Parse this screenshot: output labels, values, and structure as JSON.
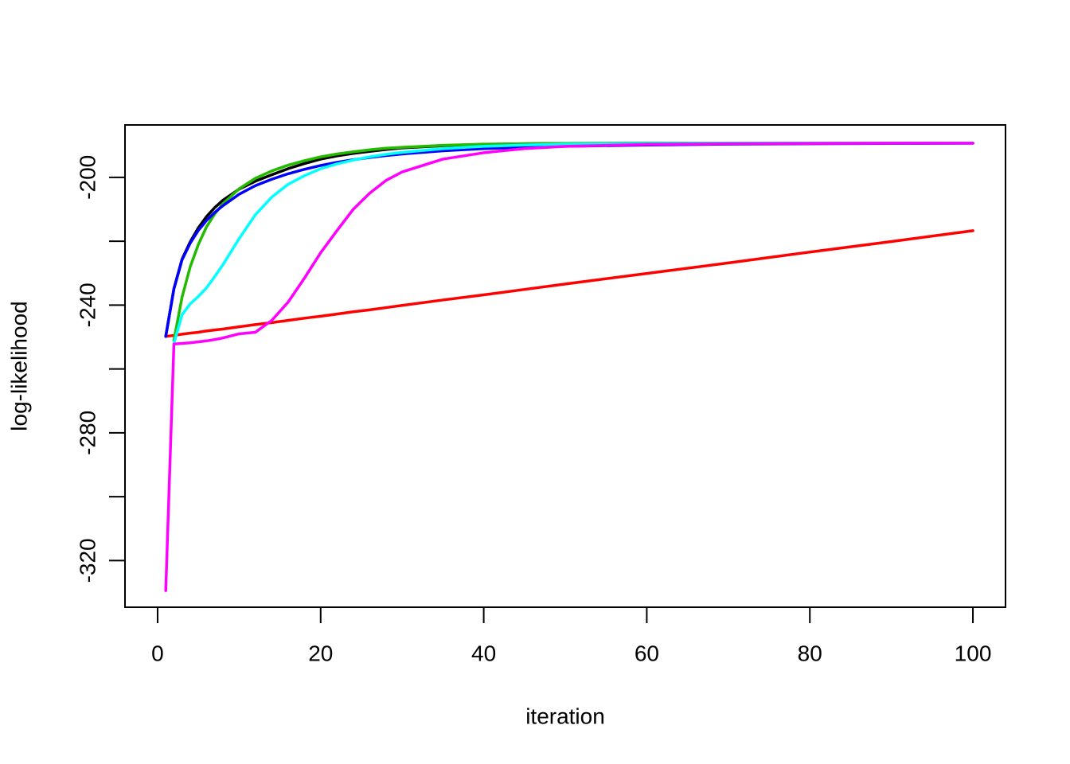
{
  "chart_data": {
    "type": "line",
    "x_label": "iteration",
    "y_label": "log-likelihood",
    "x": [
      1,
      2,
      3,
      4,
      5,
      6,
      7,
      8,
      10,
      12,
      14,
      16,
      18,
      20,
      22,
      24,
      26,
      28,
      30,
      35,
      40,
      45,
      50,
      60,
      70,
      80,
      90,
      100
    ],
    "series": [
      {
        "color": "#ff0000",
        "values": [
          -249.8,
          -249.5,
          -249.1,
          -248.8,
          -248.5,
          -248.1,
          -247.8,
          -247.5,
          -246.8,
          -246.1,
          -245.5,
          -244.8,
          -244.1,
          -243.5,
          -242.8,
          -242.1,
          -241.5,
          -240.8,
          -240.1,
          -238.4,
          -236.8,
          -235.1,
          -233.4,
          -230.1,
          -226.8,
          -223.4,
          -220.1,
          -216.7
        ]
      },
      {
        "color": "#000000",
        "values": [
          -249.8,
          -234.9,
          -225.6,
          -220.2,
          -215.8,
          -212.3,
          -209.5,
          -207.2,
          -203.7,
          -201.2,
          -199.2,
          -197.3,
          -195.7,
          -194.3,
          -193.3,
          -192.5,
          -191.9,
          -191.3,
          -190.8,
          -190.1,
          -189.7,
          -189.5,
          -189.4,
          -189.3,
          -189.3,
          -189.3,
          -189.3,
          -189.3
        ]
      },
      {
        "color": "#22bb00",
        "values": [
          null,
          -251,
          -237.5,
          -228,
          -221,
          -215.5,
          -211.5,
          -208.3,
          -203.6,
          -200.3,
          -198,
          -196.2,
          -194.8,
          -193.6,
          -192.7,
          -192,
          -191.4,
          -190.9,
          -190.6,
          -190,
          -189.6,
          -189.5,
          -189.4,
          -189.3,
          -189.3,
          -189.3,
          -189.3,
          -189.3
        ]
      },
      {
        "color": "#0000ff",
        "values": [
          -249.8,
          -234.9,
          -225.8,
          -220.6,
          -216.6,
          -213.5,
          -211,
          -208.9,
          -205.3,
          -202.6,
          -200.6,
          -198.9,
          -197.5,
          -196.3,
          -195.3,
          -194.5,
          -193.8,
          -193.2,
          -192.7,
          -191.7,
          -191,
          -190.6,
          -190.3,
          -189.9,
          -189.6,
          -189.5,
          -189.4,
          -189.3
        ]
      },
      {
        "color": "#00ffff",
        "values": [
          null,
          -252,
          -243,
          -239.6,
          -237.3,
          -234.6,
          -231.1,
          -227.4,
          -219.2,
          -211.7,
          -206.2,
          -202.2,
          -199.5,
          -197.3,
          -195.8,
          -194.6,
          -193.6,
          -192.8,
          -192.2,
          -191,
          -190.3,
          -189.9,
          -189.6,
          -189.4,
          -189.3,
          -189.3,
          -189.3,
          -189.3
        ]
      },
      {
        "color": "#ff00ff",
        "values": [
          -329.4,
          -252.2,
          -252,
          -251.8,
          -251.5,
          -251.2,
          -250.8,
          -250.3,
          -249,
          -248.5,
          -244.8,
          -239.1,
          -231.6,
          -223.6,
          -216.7,
          -210,
          -205,
          -201,
          -198.3,
          -194.3,
          -192.3,
          -191,
          -190.3,
          -189.7,
          -189.5,
          -189.4,
          -189.3,
          -189.3
        ]
      }
    ],
    "xlim": [
      -4,
      104
    ],
    "xticks": [
      0,
      20,
      40,
      60,
      80,
      100
    ],
    "ylim": [
      -334.6,
      -183.6
    ],
    "yticks": [
      -320,
      {
        "value": -300,
        "label": null
      },
      -280,
      {
        "value": -260,
        "label": null
      },
      -240,
      {
        "value": -220,
        "label": null
      },
      -200
    ]
  }
}
